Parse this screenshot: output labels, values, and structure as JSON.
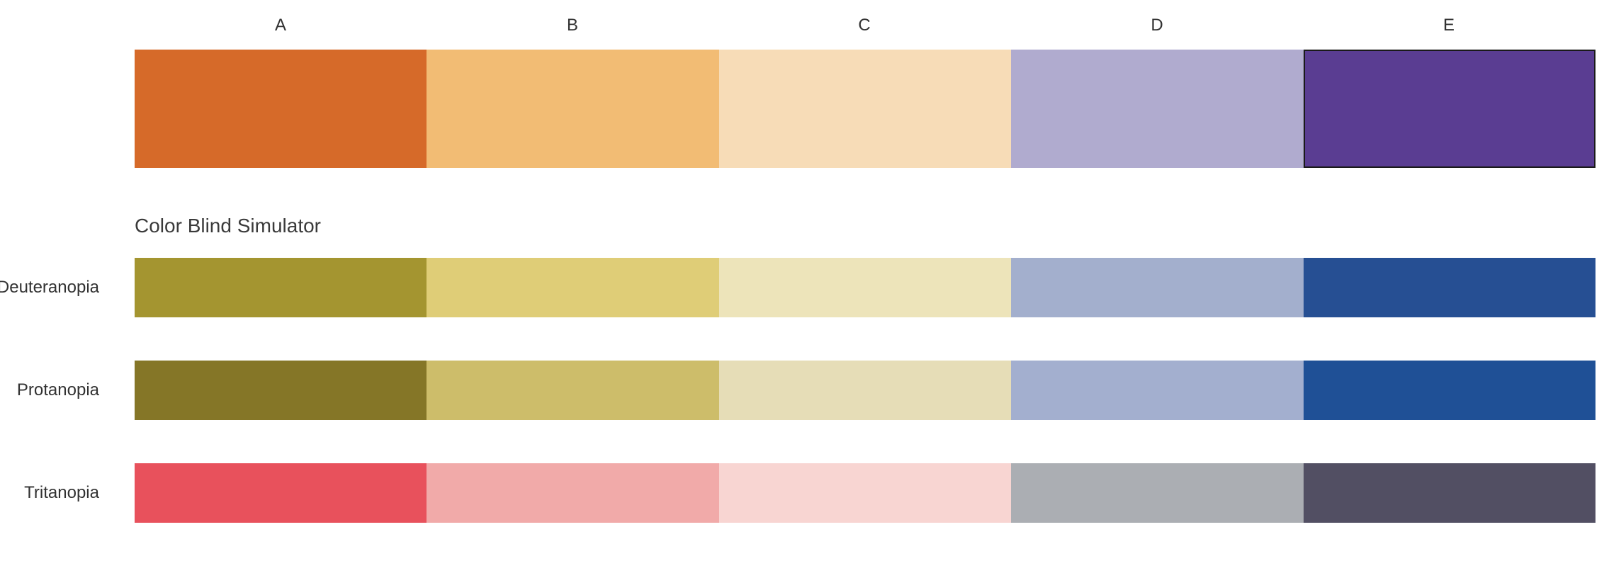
{
  "columns": [
    {
      "label": "A",
      "color": "#D66A29"
    },
    {
      "label": "B",
      "color": "#F2BC74"
    },
    {
      "label": "C",
      "color": "#F7DCB7"
    },
    {
      "label": "D",
      "color": "#B0ABCF"
    },
    {
      "label": "E",
      "color": "#5A3D92"
    }
  ],
  "selected_column": "E",
  "simulator": {
    "title": "Color Blind Simulator",
    "rows": [
      {
        "label": "Deuteranopia",
        "colors": [
          "#A49530",
          "#DFCD77",
          "#EDE4BA",
          "#A3AFCD",
          "#264F93"
        ]
      },
      {
        "label": "Protanopia",
        "colors": [
          "#857627",
          "#CDBD6A",
          "#E6DDB7",
          "#A3AFCF",
          "#1F5096"
        ]
      },
      {
        "label": "Tritanopia",
        "colors": [
          "#E8515C",
          "#F1AAA9",
          "#F8D5D2",
          "#ABAEB3",
          "#524F63"
        ]
      }
    ]
  }
}
